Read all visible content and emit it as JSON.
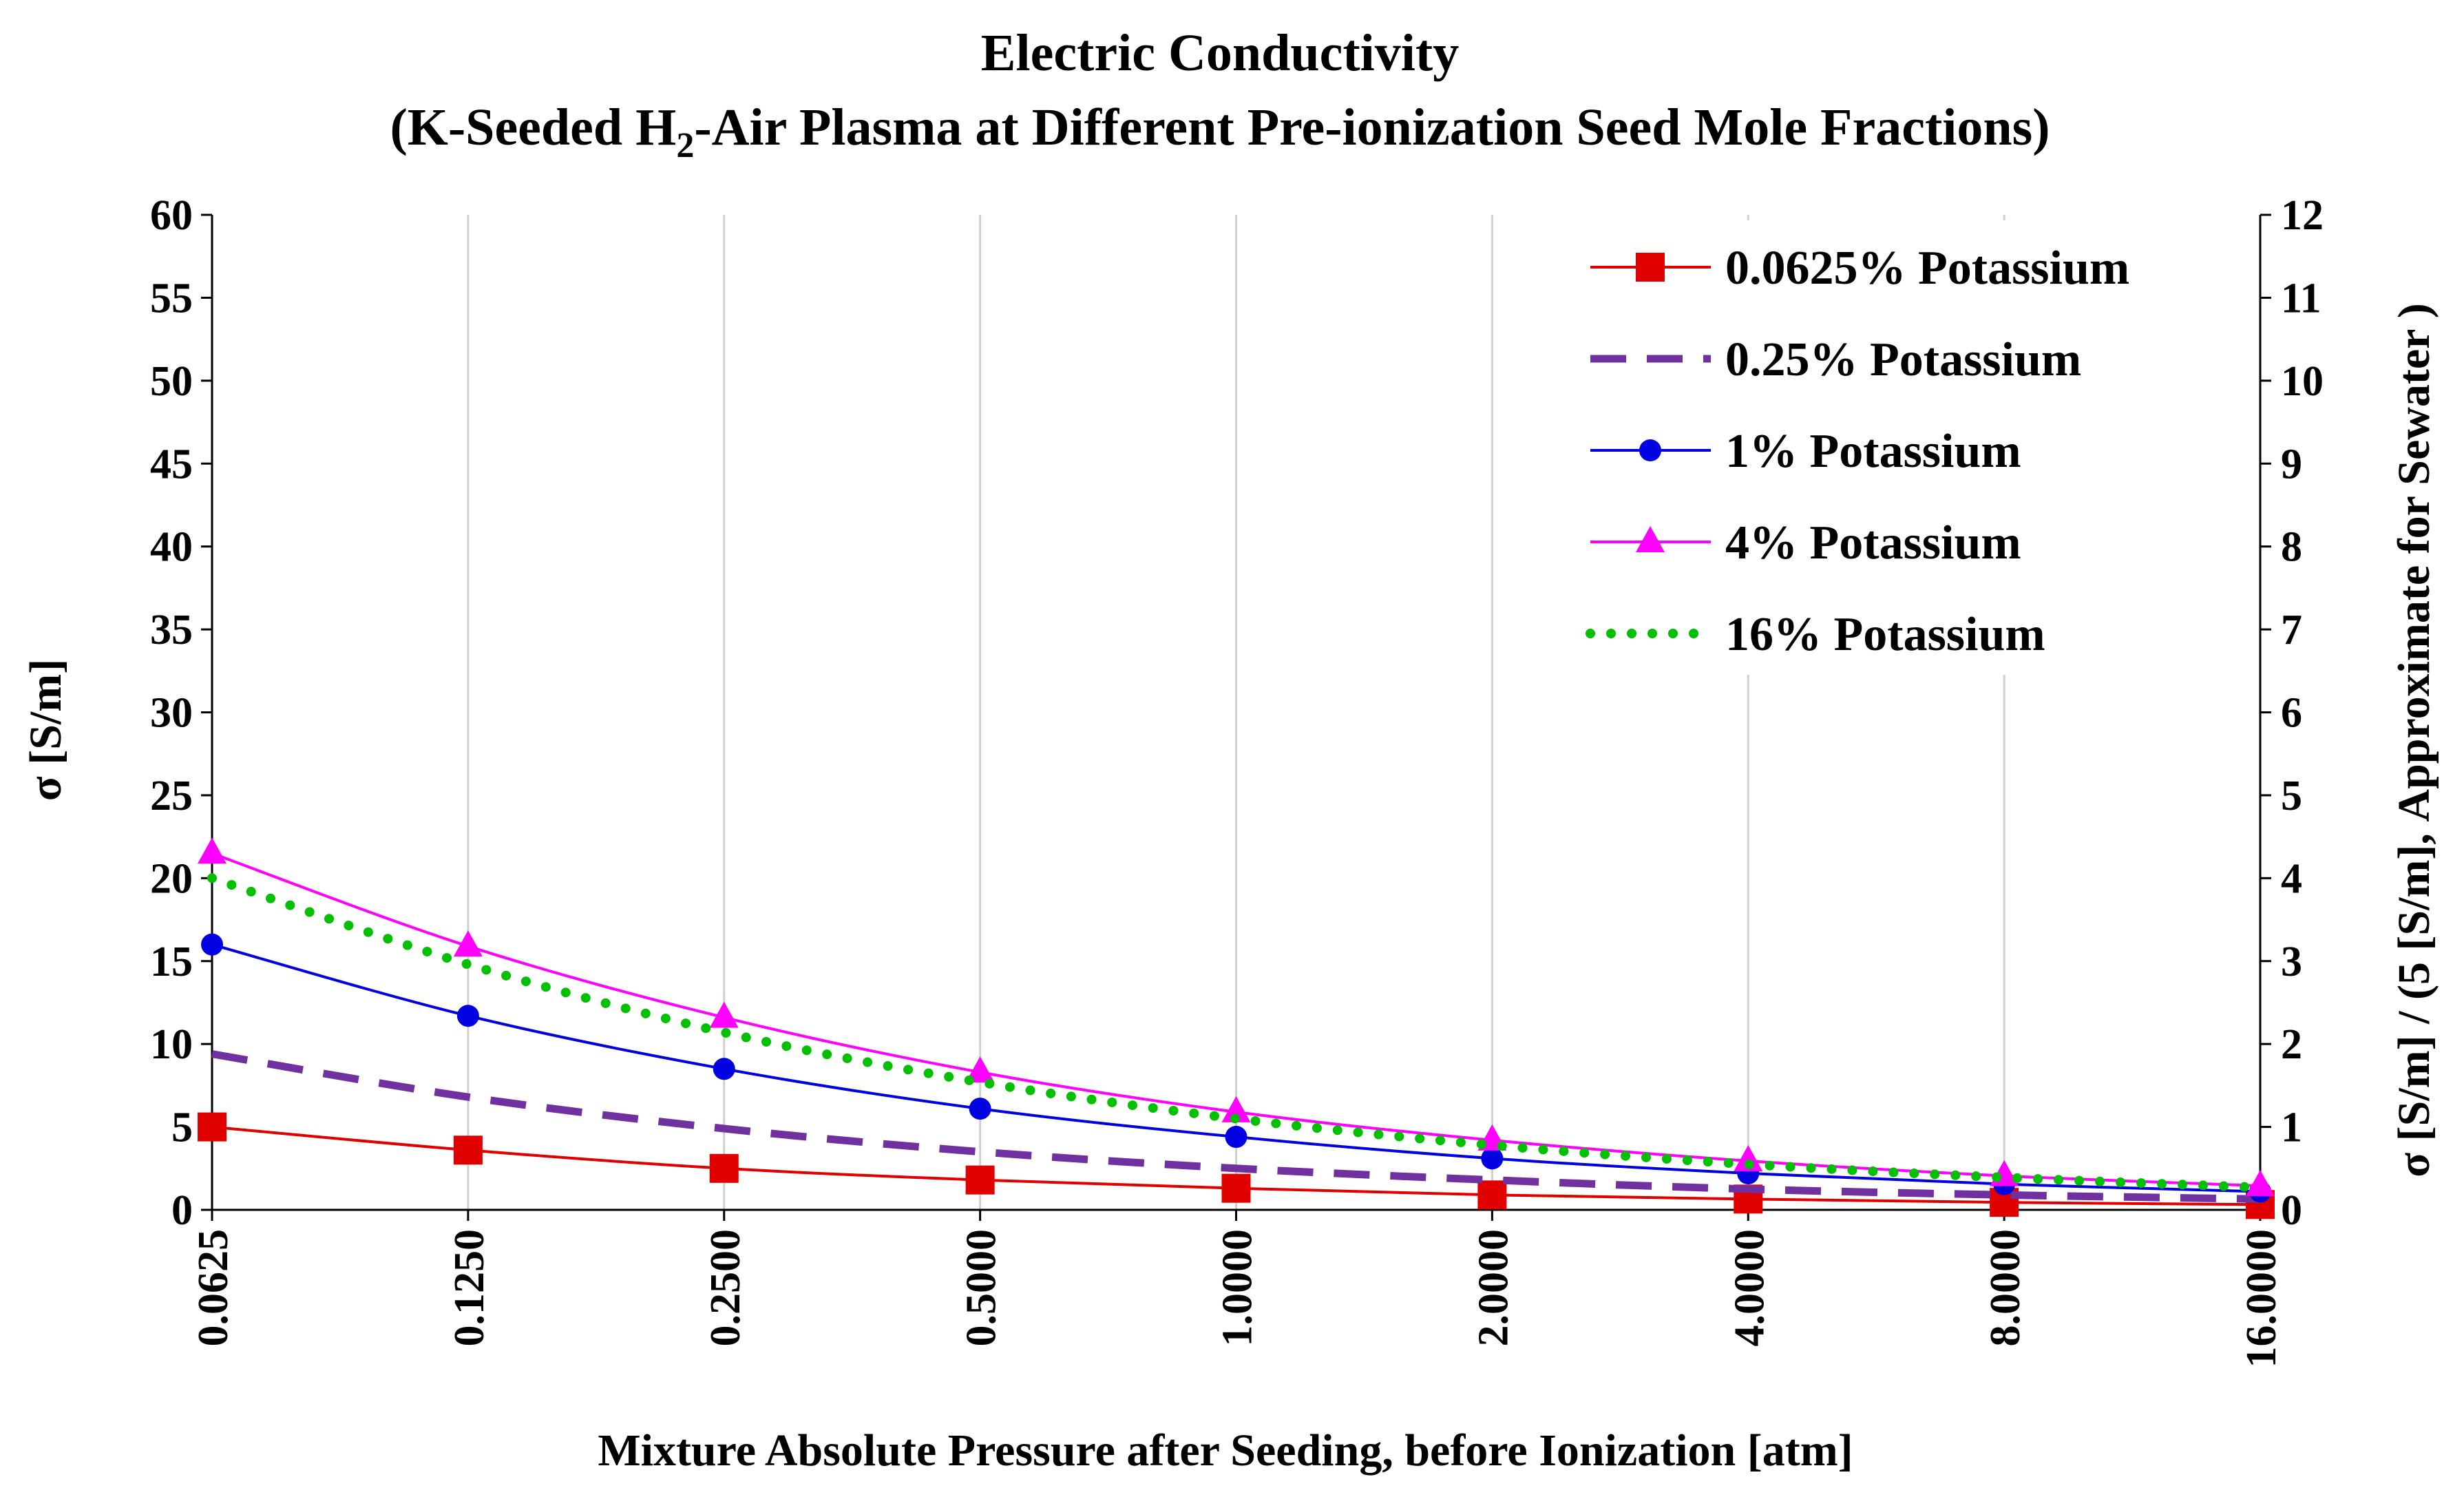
{
  "chart_data": {
    "type": "line",
    "title": "Electric Conductivity",
    "subtitle_prefix": "(K-Seeded H",
    "subtitle_sub": "2",
    "subtitle_suffix": "-Air Plasma at Different Pre-ionization Seed Mole Fractions)",
    "xlabel": "Mixture Absolute Pressure after Seeding, before Ionization [atm]",
    "ylabel": "σ [S/m]",
    "y2label": "σ [S/m] / (5 [S/m], Approximate for Sewater )",
    "categories": [
      "0.0625",
      "0.1250",
      "0.2500",
      "0.5000",
      "1.0000",
      "2.0000",
      "4.0000",
      "8.0000",
      "16.0000"
    ],
    "ylim": [
      0,
      60
    ],
    "yticks": [
      "0",
      "5",
      "10",
      "15",
      "20",
      "25",
      "30",
      "35",
      "40",
      "45",
      "50",
      "55",
      "60"
    ],
    "y2lim": [
      0,
      12
    ],
    "y2ticks": [
      "0",
      "1",
      "2",
      "3",
      "4",
      "5",
      "6",
      "7",
      "8",
      "9",
      "10",
      "11",
      "12"
    ],
    "grid": "vertical",
    "legend_position": "top-right",
    "series": [
      {
        "name": "0.0625% Potassium",
        "color": "#e00000",
        "marker": "square",
        "dash": "solid",
        "values": [
          5.0,
          3.6,
          2.5,
          1.8,
          1.3,
          0.9,
          0.65,
          0.45,
          0.32
        ]
      },
      {
        "name": "0.25% Potassium",
        "color": "#7030a0",
        "marker": "none",
        "dash": "dashed",
        "values": [
          9.4,
          6.8,
          4.9,
          3.5,
          2.5,
          1.8,
          1.25,
          0.9,
          0.65
        ]
      },
      {
        "name": "1% Potassium",
        "color": "#0000e0",
        "marker": "circle",
        "dash": "solid",
        "values": [
          16.0,
          11.7,
          8.5,
          6.1,
          4.4,
          3.1,
          2.2,
          1.55,
          1.1
        ]
      },
      {
        "name": "4% Potassium",
        "color": "#ff00ff",
        "marker": "triangle",
        "dash": "solid",
        "values": [
          21.5,
          15.9,
          11.6,
          8.3,
          5.9,
          4.2,
          2.95,
          2.05,
          1.45
        ]
      },
      {
        "name": "16% Potassium",
        "color": "#00c000",
        "marker": "none",
        "dash": "dotted",
        "values": [
          20.0,
          14.8,
          10.7,
          7.7,
          5.5,
          3.9,
          2.75,
          1.95,
          1.35
        ]
      }
    ]
  }
}
